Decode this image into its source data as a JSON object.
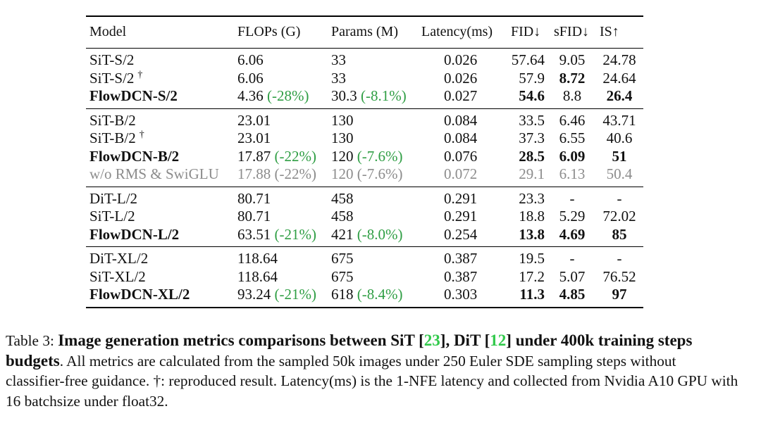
{
  "table": {
    "headers": {
      "model": "Model",
      "flops": "FLOPs (G)",
      "params": "Params (M)",
      "latency": "Latency(ms)",
      "fid": "FID↓",
      "sfid": "sFID↓",
      "is": "IS↑"
    },
    "groups": [
      {
        "rows": [
          {
            "model": "SiT-S/2",
            "dagger": "",
            "flops": "6.06",
            "flops_delta": "",
            "params": "33",
            "params_delta": "",
            "latency": "0.026",
            "fid": "57.64",
            "sfid": "9.05",
            "is": "24.78",
            "bold_model": false,
            "bold_fid": false,
            "bold_sfid": false,
            "bold_is": false,
            "gray": false
          },
          {
            "model": "SiT-S/2",
            "dagger": "†",
            "flops": "6.06",
            "flops_delta": "",
            "params": "33",
            "params_delta": "",
            "latency": "0.026",
            "fid": "57.9",
            "sfid": "8.72",
            "is": "24.64",
            "bold_model": false,
            "bold_fid": false,
            "bold_sfid": true,
            "bold_is": false,
            "gray": false
          },
          {
            "model": "FlowDCN-S/2",
            "dagger": "",
            "flops": "4.36",
            "flops_delta": "(-28%)",
            "params": "30.3",
            "params_delta": "(-8.1%)",
            "latency": "0.027",
            "fid": "54.6",
            "sfid": "8.8",
            "is": "26.4",
            "bold_model": true,
            "bold_fid": true,
            "bold_sfid": false,
            "bold_is": true,
            "gray": false
          }
        ]
      },
      {
        "rows": [
          {
            "model": "SiT-B/2",
            "dagger": "",
            "flops": "23.01",
            "flops_delta": "",
            "params": "130",
            "params_delta": "",
            "latency": "0.084",
            "fid": "33.5",
            "sfid": "6.46",
            "is": "43.71",
            "bold_model": false,
            "bold_fid": false,
            "bold_sfid": false,
            "bold_is": false,
            "gray": false
          },
          {
            "model": "SiT-B/2",
            "dagger": "†",
            "flops": "23.01",
            "flops_delta": "",
            "params": "130",
            "params_delta": "",
            "latency": "0.084",
            "fid": "37.3",
            "sfid": "6.55",
            "is": "40.6",
            "bold_model": false,
            "bold_fid": false,
            "bold_sfid": false,
            "bold_is": false,
            "gray": false
          },
          {
            "model": "FlowDCN-B/2",
            "dagger": "",
            "flops": "17.87",
            "flops_delta": "(-22%)",
            "params": "120",
            "params_delta": "(-7.6%)",
            "latency": "0.076",
            "fid": "28.5",
            "sfid": "6.09",
            "is": "51",
            "bold_model": true,
            "bold_fid": true,
            "bold_sfid": true,
            "bold_is": true,
            "gray": false
          },
          {
            "model": "w/o RMS & SwiGLU",
            "dagger": "",
            "flops": "17.88",
            "flops_delta": "(-22%)",
            "params": "120",
            "params_delta": "(-7.6%)",
            "latency": "0.072",
            "fid": "29.1",
            "sfid": "6.13",
            "is": "50.4",
            "bold_model": false,
            "bold_fid": false,
            "bold_sfid": false,
            "bold_is": false,
            "gray": true
          }
        ]
      },
      {
        "rows": [
          {
            "model": "DiT-L/2",
            "dagger": "",
            "flops": "80.71",
            "flops_delta": "",
            "params": "458",
            "params_delta": "",
            "latency": "0.291",
            "fid": "23.3",
            "sfid": "-",
            "is": "-",
            "bold_model": false,
            "bold_fid": false,
            "bold_sfid": false,
            "bold_is": false,
            "gray": false
          },
          {
            "model": "SiT-L/2",
            "dagger": "",
            "flops": "80.71",
            "flops_delta": "",
            "params": "458",
            "params_delta": "",
            "latency": "0.291",
            "fid": "18.8",
            "sfid": "5.29",
            "is": "72.02",
            "bold_model": false,
            "bold_fid": false,
            "bold_sfid": false,
            "bold_is": false,
            "gray": false
          },
          {
            "model": "FlowDCN-L/2",
            "dagger": "",
            "flops": "63.51",
            "flops_delta": "(-21%)",
            "params": "421",
            "params_delta": "(-8.0%)",
            "latency": "0.254",
            "fid": "13.8",
            "sfid": "4.69",
            "is": "85",
            "bold_model": true,
            "bold_fid": true,
            "bold_sfid": true,
            "bold_is": true,
            "gray": false
          }
        ]
      },
      {
        "rows": [
          {
            "model": "DiT-XL/2",
            "dagger": "",
            "flops": "118.64",
            "flops_delta": "",
            "params": "675",
            "params_delta": "",
            "latency": "0.387",
            "fid": "19.5",
            "sfid": "-",
            "is": "-",
            "bold_model": false,
            "bold_fid": false,
            "bold_sfid": false,
            "bold_is": false,
            "gray": false
          },
          {
            "model": "SiT-XL/2",
            "dagger": "",
            "flops": "118.64",
            "flops_delta": "",
            "params": "675",
            "params_delta": "",
            "latency": "0.387",
            "fid": "17.2",
            "sfid": "5.07",
            "is": "76.52",
            "bold_model": false,
            "bold_fid": false,
            "bold_sfid": false,
            "bold_is": false,
            "gray": false
          },
          {
            "model": "FlowDCN-XL/2",
            "dagger": "",
            "flops": "93.24",
            "flops_delta": "(-21%)",
            "params": "618",
            "params_delta": "(-8.4%)",
            "latency": "0.303",
            "fid": "11.3",
            "sfid": "4.85",
            "is": "97",
            "bold_model": true,
            "bold_fid": true,
            "bold_sfid": true,
            "bold_is": true,
            "gray": false
          }
        ]
      }
    ]
  },
  "caption": {
    "label": "Table 3:",
    "title_part1": "Image generation metrics comparisons between SiT [",
    "ref1": "23",
    "title_part2": "], DiT [",
    "ref2": "12",
    "title_part3": "] under 400k training steps budgets",
    "body": ". All metrics are calculated from the sampled 50k images under 250 Euler SDE sampling steps without classifier-free guidance. †: reproduced result. Latency(ms) is the 1-NFE latency and collected from Nvidia A10 GPU with 16 batchsize under float32."
  },
  "colors": {
    "delta_green": "#2f9e44",
    "ref_green": "#31c94b",
    "muted_gray": "#8c8c8c"
  }
}
